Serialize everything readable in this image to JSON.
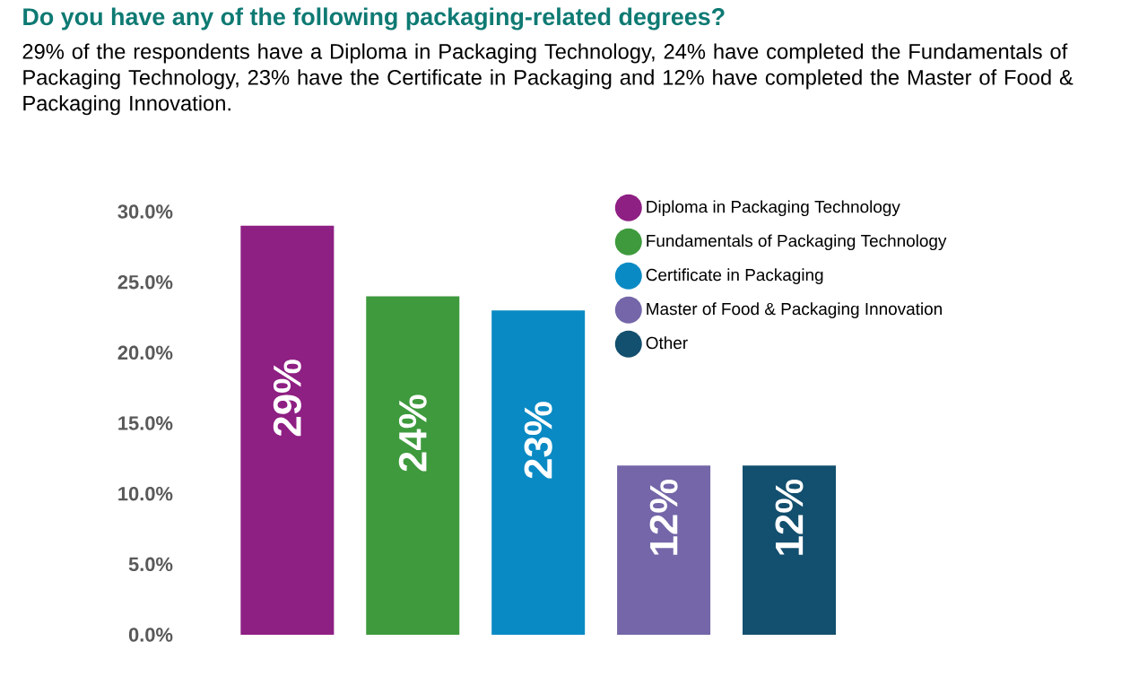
{
  "chart_data": {
    "type": "bar",
    "title": "Do you have any of the following packaging-related degrees?",
    "subtitle": "29% of the respondents have a Diploma in Packaging Technology, 24% have completed the Fundamentals of Packaging Technology, 23% have the Certificate in Packaging and 12% have completed the Master of Food & Packaging Innovation.",
    "categories": [
      null,
      null,
      null,
      null,
      null
    ],
    "stacked": true,
    "series": [
      {
        "name": "Diploma in Packaging Technology",
        "color": "#8e1f83",
        "values": [
          29,
          null,
          null,
          null,
          null
        ],
        "value_labels": [
          "29%",
          null,
          null,
          null,
          null
        ]
      },
      {
        "name": "Fundamentals of Packaging Technology",
        "color": "#3e9a3d",
        "values": [
          null,
          24,
          null,
          null,
          null
        ],
        "value_labels": [
          null,
          "24%",
          null,
          null,
          null
        ]
      },
      {
        "name": "Certificate in Packaging",
        "color": "#0a8ac4",
        "values": [
          null,
          null,
          23,
          null,
          null
        ],
        "value_labels": [
          null,
          null,
          "23%",
          null,
          null
        ]
      },
      {
        "name": "Master of Food & Packaging Innovation",
        "color": "#7466a8",
        "values": [
          null,
          null,
          null,
          12,
          null
        ],
        "value_labels": [
          null,
          null,
          null,
          "12%",
          null
        ]
      },
      {
        "name": "Other",
        "color": "#134f6e",
        "values": [
          null,
          null,
          null,
          null,
          12
        ],
        "value_labels": [
          null,
          null,
          null,
          null,
          "12%"
        ]
      }
    ],
    "ylim": [
      0,
      30
    ],
    "yticks": [
      {
        "value": 0,
        "label": "0.0%"
      },
      {
        "value": 5,
        "label": "5.0%"
      },
      {
        "value": 10,
        "label": "10.0%"
      },
      {
        "value": 15,
        "label": "15.0%"
      },
      {
        "value": 20,
        "label": "20.0%"
      },
      {
        "value": 25,
        "label": "25.0%"
      },
      {
        "value": 30,
        "label": "30.0%"
      }
    ],
    "grid": false,
    "legend": "top right"
  }
}
